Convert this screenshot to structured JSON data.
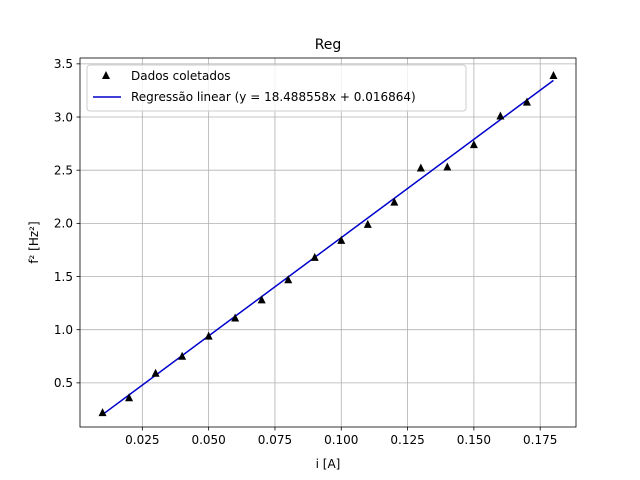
{
  "chart_data": {
    "type": "scatter",
    "title": "Reg",
    "xlabel": "i [A]",
    "ylabel": "f² [Hz²]",
    "xlim": [
      0.0015,
      0.1885
    ],
    "ylim": [
      0.085,
      3.555
    ],
    "xticks": [
      0.025,
      0.05,
      0.075,
      0.1,
      0.125,
      0.15,
      0.175
    ],
    "xtick_labels": [
      "0.025",
      "0.050",
      "0.075",
      "0.100",
      "0.125",
      "0.150",
      "0.175"
    ],
    "yticks": [
      0.5,
      1.0,
      1.5,
      2.0,
      2.5,
      3.0,
      3.5
    ],
    "ytick_labels": [
      "0.5",
      "1.0",
      "1.5",
      "2.0",
      "2.5",
      "3.0",
      "3.5"
    ],
    "grid": true,
    "legend_position": "top-left",
    "series": [
      {
        "name": "Dados coletados",
        "kind": "scatter",
        "marker": "triangle",
        "color": "#000000",
        "x": [
          0.01,
          0.02,
          0.03,
          0.04,
          0.05,
          0.06,
          0.07,
          0.08,
          0.09,
          0.1,
          0.11,
          0.12,
          0.13,
          0.14,
          0.15,
          0.16,
          0.17,
          0.18
        ],
        "y": [
          0.22,
          0.36,
          0.59,
          0.75,
          0.94,
          1.11,
          1.28,
          1.47,
          1.68,
          1.84,
          1.99,
          2.2,
          2.52,
          2.53,
          2.74,
          3.01,
          3.14,
          3.39
        ]
      },
      {
        "name": "Regressão linear (y = 18.488558x + 0.016864)",
        "kind": "line",
        "color": "#0000cc",
        "slope": 18.488558,
        "intercept": 0.016864,
        "x_range": [
          0.01,
          0.18
        ]
      }
    ]
  }
}
